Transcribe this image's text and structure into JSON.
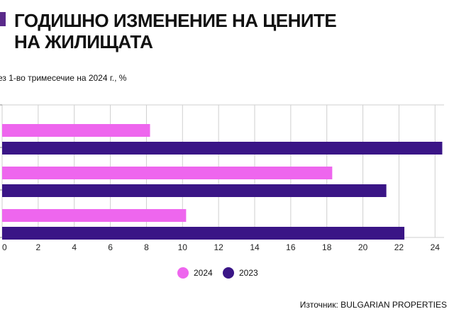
{
  "header": {
    "title": "ГОДИШНО ИЗМЕНЕНИЕ НА ЦЕНИТЕ\nНА ЖИЛИЩАТА",
    "accent_color": "#5a2a8a"
  },
  "subtitle": "ез 1-во тримесечие на 2024 г., %",
  "source": "Източник: BULGARIAN PROPERTIES",
  "chart_data": {
    "type": "bar",
    "orientation": "horizontal",
    "categories": [
      "",
      "",
      ""
    ],
    "series": [
      {
        "name": "2024",
        "color": "#ee66ee",
        "values": [
          8.2,
          18.3,
          10.2
        ]
      },
      {
        "name": "2023",
        "color": "#3a1586",
        "values": [
          24.4,
          21.3,
          22.3
        ]
      }
    ],
    "xlim": [
      0,
      24.5
    ],
    "xticks": [
      0,
      2,
      4,
      6,
      8,
      10,
      12,
      14,
      16,
      18,
      20,
      22,
      24
    ],
    "grid": "vertical",
    "legend": "bottom-center"
  }
}
